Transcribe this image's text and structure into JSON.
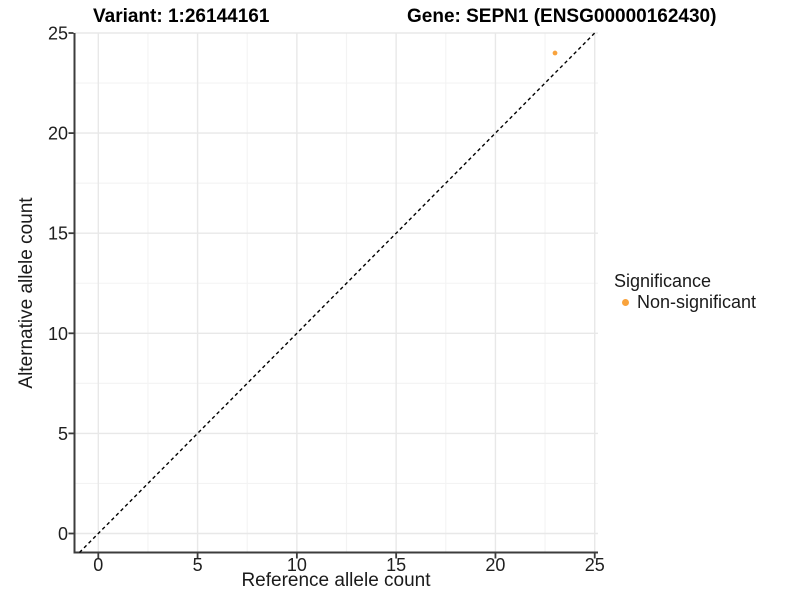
{
  "titles": {
    "variant": "Variant: 1:26144161",
    "gene": "Gene: SEPN1 (ENSG00000162430)"
  },
  "chart_data": {
    "type": "scatter",
    "title_left": "Variant: 1:26144161",
    "title_right": "Gene: SEPN1 (ENSG00000162430)",
    "xlabel": "Reference allele count",
    "ylabel": "Alternative allele count",
    "xlim": [
      0,
      25
    ],
    "ylim": [
      0,
      25
    ],
    "xticks": [
      0,
      5,
      10,
      15,
      20,
      25
    ],
    "yticks": [
      0,
      5,
      10,
      15,
      20,
      25
    ],
    "minor_xticks": [
      2.5,
      7.5,
      12.5,
      17.5,
      22.5
    ],
    "minor_yticks": [
      2.5,
      7.5,
      12.5,
      17.5,
      22.5
    ],
    "grid": "major and minor, light gray on white",
    "points": [
      {
        "x": 23,
        "y": 24,
        "series": "Non-significant"
      }
    ],
    "identity_line": {
      "equation": "y = x",
      "style": "dashed",
      "color": "#000000"
    },
    "legend": {
      "title": "Significance",
      "position": "right",
      "entries": [
        {
          "label": "Non-significant",
          "color": "#F9A33C"
        }
      ]
    }
  },
  "colors": {
    "point": "#F9A33C",
    "grid_major": "#E8E8E8",
    "grid_minor": "#F3F3F3",
    "axis_line": "#3C3C3C",
    "tick_label": "#1F1F1F",
    "dashed_line": "#000000",
    "background": "#FFFFFF"
  }
}
